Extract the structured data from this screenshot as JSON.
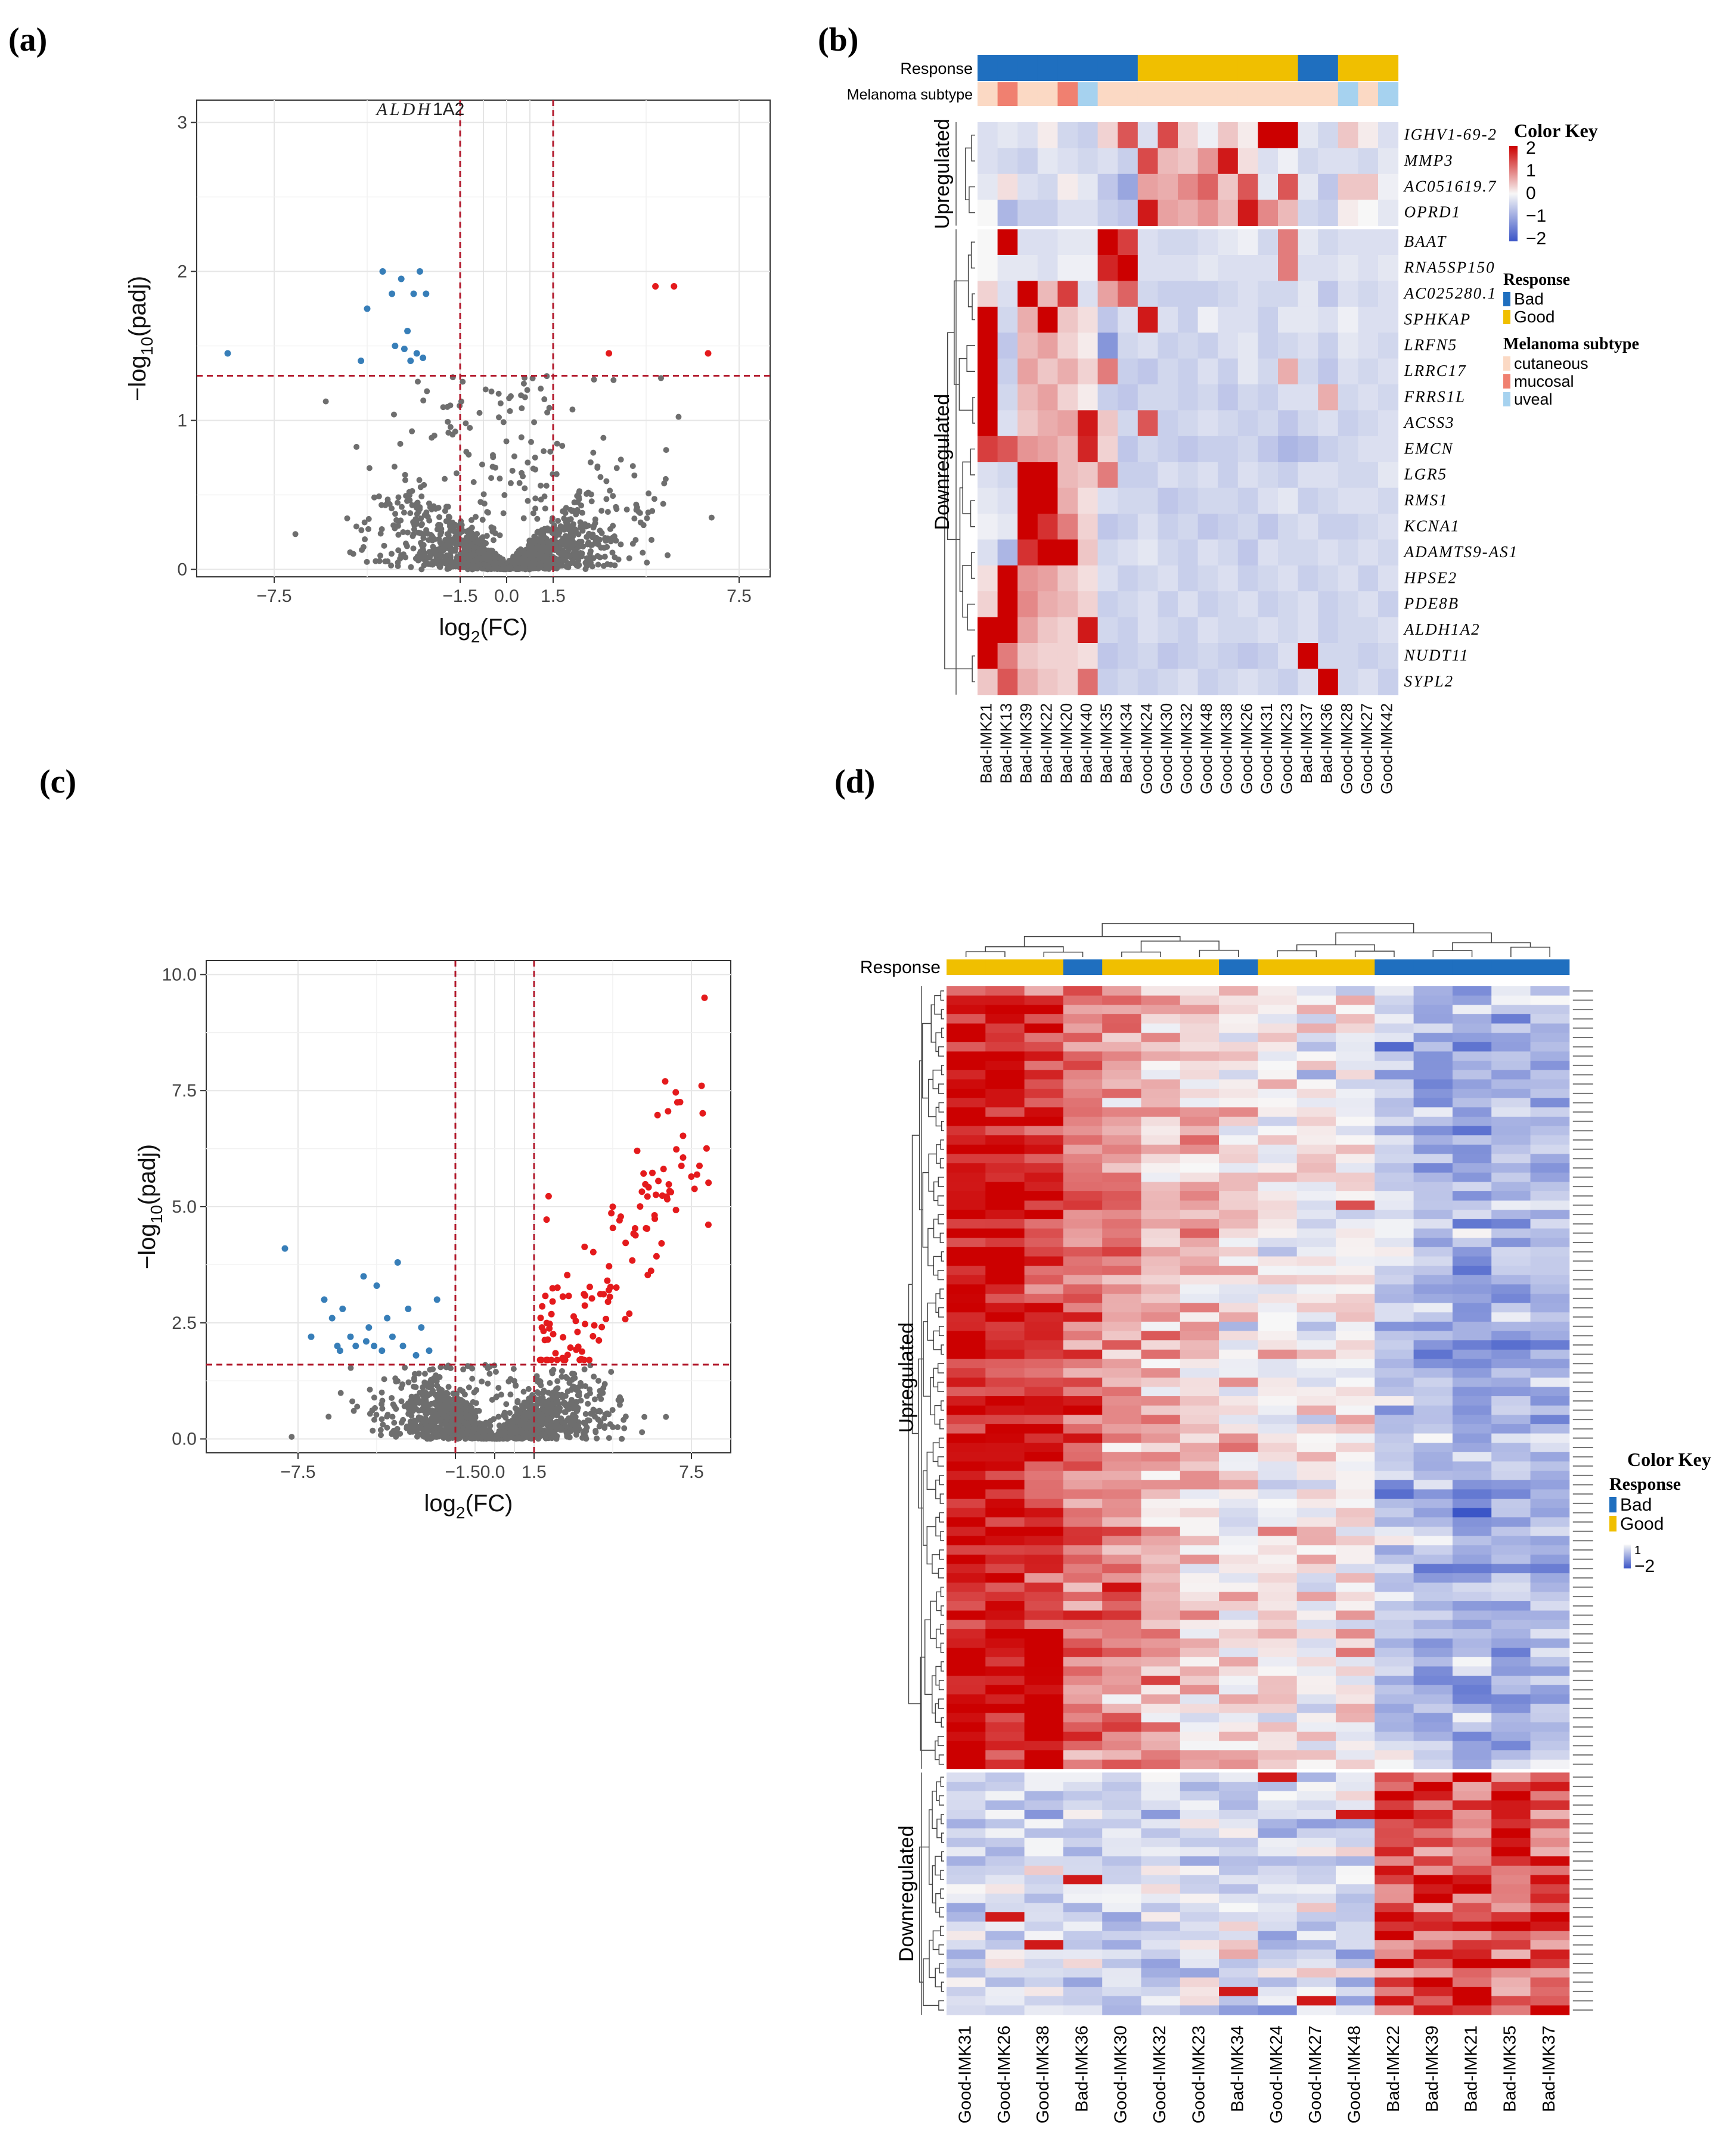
{
  "panels": {
    "a": {
      "label": "(a)"
    },
    "b": {
      "label": "(b)"
    },
    "c": {
      "label": "(c)"
    },
    "d": {
      "label": "(d)"
    }
  },
  "colors": {
    "up": "#e41a1c",
    "down": "#377eb8",
    "ns": "#6e6e6e",
    "threshold": "#b2182b",
    "bad": "#1f6fbf",
    "good": "#f0bf00",
    "cutaneous": "#fbd9c4",
    "mucosal": "#f08070",
    "uveal": "#a6d2ef",
    "heat_low": "#3b55c7",
    "heat_mid": "#f7f7f7",
    "heat_high": "#cc0000"
  },
  "chart_data": [
    {
      "id": "a",
      "type": "scatter",
      "title": "",
      "xlabel_main": "log",
      "xlabel_sub": "2",
      "xlabel_tail": "(FC)",
      "ylabel_main": "−log",
      "ylabel_sub": "10",
      "ylabel_tail": "(padj)",
      "xlim": [
        -10.0,
        8.5
      ],
      "ylim": [
        -0.05,
        3.15
      ],
      "xticks": [
        {
          "v": -7.5,
          "t": "−7.5"
        },
        {
          "v": -1.5,
          "t": "−1.5"
        },
        {
          "v": 0.0,
          "t": "0.0"
        },
        {
          "v": 1.5,
          "t": "1.5"
        },
        {
          "v": 7.5,
          "t": "7.5"
        }
      ],
      "yticks": [
        {
          "v": 0,
          "t": "0"
        },
        {
          "v": 1,
          "t": "1"
        },
        {
          "v": 2,
          "t": "2"
        },
        {
          "v": 3,
          "t": "3"
        }
      ],
      "vlines": [
        -1.5,
        1.5
      ],
      "hline": 1.3,
      "annotations": [
        {
          "x": -4.2,
          "y": 3.05,
          "italic": "ALDH",
          "plain": "1A2"
        }
      ],
      "down_points": [
        [
          -9.0,
          1.45
        ],
        [
          -4.5,
          1.75
        ],
        [
          -4.0,
          2.0
        ],
        [
          -3.7,
          1.85
        ],
        [
          -3.4,
          1.95
        ],
        [
          -3.2,
          1.6
        ],
        [
          -3.0,
          1.85
        ],
        [
          -2.8,
          2.0
        ],
        [
          -2.6,
          1.85
        ],
        [
          -3.6,
          1.5
        ],
        [
          -3.3,
          1.48
        ],
        [
          -2.9,
          1.45
        ],
        [
          -3.1,
          1.4
        ],
        [
          -4.7,
          1.4
        ],
        [
          -2.7,
          1.42
        ]
      ],
      "up_points": [
        [
          4.8,
          1.9
        ],
        [
          5.4,
          1.9
        ],
        [
          6.5,
          1.45
        ],
        [
          3.3,
          1.45
        ]
      ],
      "ns_scatter": {
        "n": 1500,
        "seed": 7,
        "xspan": 8.5,
        "ymax": 1.3
      }
    },
    {
      "id": "b",
      "type": "heatmap",
      "row_group_labels": [
        "Upregulated",
        "Downregulated"
      ],
      "annotation_labels": [
        "Response",
        "Melanoma subtype"
      ],
      "columns": [
        "Bad-IMK21",
        "Bad-IMK13",
        "Bad-IMK39",
        "Bad-IMK22",
        "Bad-IMK20",
        "Bad-IMK40",
        "Bad-IMK35",
        "Bad-IMK34",
        "Good-IMK24",
        "Good-IMK30",
        "Good-IMK32",
        "Good-IMK48",
        "Good-IMK38",
        "Good-IMK26",
        "Good-IMK31",
        "Good-IMK23",
        "Bad-IMK37",
        "Bad-IMK36",
        "Good-IMK28",
        "Good-IMK27",
        "Good-IMK42"
      ],
      "response": [
        "Bad",
        "Bad",
        "Bad",
        "Bad",
        "Bad",
        "Bad",
        "Bad",
        "Bad",
        "Good",
        "Good",
        "Good",
        "Good",
        "Good",
        "Good",
        "Good",
        "Good",
        "Bad",
        "Bad",
        "Good",
        "Good",
        "Good"
      ],
      "subtype": [
        "cutaneous",
        "mucosal",
        "cutaneous",
        "cutaneous",
        "mucosal",
        "uveal",
        "cutaneous",
        "cutaneous",
        "cutaneous",
        "cutaneous",
        "cutaneous",
        "cutaneous",
        "cutaneous",
        "cutaneous",
        "cutaneous",
        "cutaneous",
        "cutaneous",
        "cutaneous",
        "uveal",
        "cutaneous",
        "uveal"
      ],
      "rows": [
        "IGHV1-69-2",
        "MMP3",
        "AC051619.7",
        "OPRD1",
        "BAAT",
        "RNA5SP150",
        "AC025280.1",
        "SPHKAP",
        "LRFN5",
        "LRRC17",
        "FRRS1L",
        "ACSS3",
        "EMCN",
        "LGR5",
        "RMS1",
        "KCNA1",
        "ADAMTS9-AS1",
        "HPSE2",
        "PDE8B",
        "ALDH1A2",
        "NUDT11",
        "SYPL2"
      ],
      "up_count": 4,
      "values": [
        [
          -0.3,
          -0.2,
          -0.3,
          0.1,
          -0.4,
          -0.5,
          0.3,
          1.3,
          -0.3,
          1.4,
          0.3,
          -0.1,
          0.4,
          0.1,
          2.0,
          2.0,
          -0.2,
          -0.4,
          0.4,
          0.1,
          -0.3
        ],
        [
          -0.3,
          -0.4,
          -0.5,
          -0.2,
          -0.3,
          -0.4,
          -0.3,
          -0.5,
          1.4,
          0.5,
          0.4,
          0.8,
          1.8,
          0.2,
          -0.3,
          -0.1,
          -0.4,
          -0.3,
          -0.3,
          -0.4,
          -0.2
        ],
        [
          -0.2,
          0.2,
          -0.3,
          -0.4,
          0.1,
          -0.2,
          -0.6,
          -1.0,
          0.7,
          0.6,
          0.9,
          1.2,
          0.4,
          1.3,
          -0.2,
          1.3,
          -0.2,
          -0.6,
          0.4,
          0.4,
          -0.1
        ],
        [
          0.0,
          -0.8,
          -0.5,
          -0.5,
          -0.3,
          -0.3,
          -0.5,
          -0.6,
          1.8,
          0.7,
          0.6,
          0.8,
          0.5,
          1.8,
          0.9,
          0.5,
          -0.4,
          -0.5,
          0.1,
          0.0,
          -0.2
        ],
        [
          0.0,
          2.0,
          -0.3,
          -0.3,
          -0.2,
          -0.2,
          2.0,
          1.5,
          -0.3,
          -0.4,
          -0.4,
          -0.3,
          -0.2,
          -0.1,
          -0.4,
          1.0,
          -0.2,
          -0.4,
          -0.3,
          -0.3,
          -0.3
        ],
        [
          0.0,
          -0.2,
          -0.2,
          -0.3,
          -0.1,
          -0.1,
          1.7,
          2.0,
          -0.3,
          -0.3,
          -0.3,
          -0.2,
          -0.3,
          -0.3,
          -0.3,
          1.0,
          -0.3,
          -0.3,
          -0.2,
          -0.3,
          -0.2
        ],
        [
          0.3,
          -0.3,
          2.0,
          0.5,
          1.5,
          -0.3,
          0.7,
          1.2,
          -0.4,
          -0.5,
          -0.5,
          -0.5,
          -0.4,
          -0.3,
          -0.4,
          -0.4,
          -0.2,
          -0.6,
          -0.3,
          -0.4,
          -0.3
        ],
        [
          2.0,
          -0.4,
          0.6,
          2.0,
          0.4,
          0.2,
          -0.6,
          -0.3,
          1.8,
          -0.3,
          -0.5,
          -0.1,
          -0.3,
          -0.3,
          -0.5,
          -0.2,
          -0.2,
          -0.3,
          -0.1,
          -0.3,
          -0.3
        ],
        [
          2.0,
          -0.6,
          0.5,
          0.7,
          0.3,
          0.1,
          -1.2,
          -0.4,
          -0.3,
          -0.5,
          -0.4,
          -0.5,
          -0.3,
          -0.2,
          -0.5,
          -0.4,
          -0.3,
          -0.5,
          -0.2,
          -0.3,
          -0.4
        ],
        [
          2.0,
          -0.5,
          0.7,
          0.4,
          0.6,
          0.3,
          1.0,
          -0.5,
          -0.6,
          -0.4,
          -0.5,
          -0.3,
          -0.5,
          -0.2,
          -0.4,
          0.6,
          -0.4,
          -0.6,
          -0.3,
          -0.4,
          -0.3
        ],
        [
          2.0,
          -0.4,
          0.5,
          0.7,
          0.3,
          0.1,
          -0.5,
          -0.6,
          -0.4,
          -0.4,
          -0.5,
          -0.4,
          -0.6,
          -0.4,
          -0.5,
          -0.3,
          -0.3,
          0.6,
          -0.4,
          -0.3,
          -0.4
        ],
        [
          2.0,
          -0.3,
          0.4,
          0.6,
          0.7,
          1.8,
          0.4,
          -0.4,
          1.3,
          -0.5,
          -0.4,
          -0.3,
          -0.4,
          -0.5,
          -0.4,
          -0.6,
          -0.4,
          -0.3,
          -0.5,
          -0.4,
          -0.3
        ],
        [
          1.5,
          1.3,
          0.8,
          0.7,
          0.5,
          1.7,
          0.3,
          -0.6,
          -0.4,
          -0.5,
          -0.6,
          -0.5,
          -0.5,
          -0.4,
          -0.6,
          -0.8,
          -0.7,
          -0.5,
          -0.4,
          -0.3,
          -0.3
        ],
        [
          -0.3,
          -0.4,
          2.0,
          2.0,
          0.5,
          0.4,
          1.0,
          -0.5,
          -0.5,
          -0.3,
          -0.4,
          -0.3,
          -0.5,
          -0.3,
          -0.4,
          -0.5,
          -0.3,
          -0.3,
          -0.4,
          -0.4,
          -0.2
        ],
        [
          -0.2,
          -0.3,
          2.0,
          2.0,
          0.6,
          0.2,
          -0.3,
          -0.4,
          -0.4,
          -0.6,
          -0.5,
          -0.4,
          -0.4,
          -0.5,
          -0.3,
          -0.2,
          -0.5,
          -0.4,
          -0.3,
          -0.3,
          -0.4
        ],
        [
          -0.1,
          -0.2,
          2.0,
          1.6,
          1.0,
          0.3,
          -0.6,
          -0.5,
          -0.3,
          -0.5,
          -0.4,
          -0.6,
          -0.5,
          -0.4,
          -0.6,
          -0.4,
          -0.3,
          -0.5,
          -0.5,
          -0.4,
          -0.3
        ],
        [
          -0.3,
          -0.8,
          1.6,
          2.0,
          2.0,
          0.4,
          -0.4,
          -0.3,
          -0.2,
          -0.4,
          -0.5,
          -0.3,
          -0.4,
          -0.6,
          -0.3,
          -0.4,
          -0.4,
          -0.3,
          -0.4,
          -0.3,
          -0.4
        ],
        [
          0.2,
          2.0,
          0.8,
          0.7,
          0.4,
          0.2,
          -0.3,
          -0.5,
          -0.4,
          -0.3,
          -0.5,
          -0.4,
          -0.3,
          -0.5,
          -0.4,
          -0.3,
          -0.5,
          -0.4,
          -0.3,
          -0.5,
          -0.3
        ],
        [
          0.3,
          2.0,
          0.9,
          0.6,
          0.5,
          0.3,
          -0.5,
          -0.4,
          -0.3,
          -0.5,
          -0.3,
          -0.5,
          -0.4,
          -0.3,
          -0.5,
          -0.4,
          -0.3,
          -0.5,
          -0.4,
          -0.3,
          -0.5
        ],
        [
          2.0,
          2.0,
          0.7,
          0.4,
          0.3,
          1.8,
          -0.4,
          -0.5,
          -0.3,
          -0.4,
          -0.5,
          -0.3,
          -0.4,
          -0.4,
          -0.3,
          -0.4,
          -0.3,
          -0.5,
          -0.4,
          -0.4,
          -0.3
        ],
        [
          2.0,
          1.0,
          0.4,
          0.3,
          0.3,
          0.2,
          -0.6,
          -0.5,
          -0.4,
          -0.6,
          -0.5,
          -0.4,
          -0.5,
          -0.6,
          -0.5,
          -0.3,
          2.0,
          -0.4,
          -0.4,
          -0.5,
          -0.4
        ],
        [
          0.4,
          1.3,
          0.6,
          0.4,
          0.3,
          1.1,
          -0.5,
          -0.4,
          -0.5,
          -0.4,
          -0.3,
          -0.5,
          -0.4,
          -0.3,
          -0.4,
          -0.5,
          -0.3,
          2.0,
          -0.4,
          -0.3,
          -0.5
        ]
      ],
      "colorkey_title": "Color Key",
      "colorkey_ticks": [
        "2",
        "1",
        "0",
        "−1",
        "−2"
      ],
      "legend_response_title": "Response",
      "legend_response_items": [
        "Bad",
        "Good"
      ],
      "legend_subtype_title": "Melanoma subtype",
      "legend_subtype_items": [
        "cutaneous",
        "mucosal",
        "uveal"
      ]
    },
    {
      "id": "c",
      "type": "scatter",
      "title": "",
      "xlabel_main": "log",
      "xlabel_sub": "2",
      "xlabel_tail": "(FC)",
      "ylabel_main": "−log",
      "ylabel_sub": "10",
      "ylabel_tail": "(padj)",
      "xlim": [
        -11.0,
        9.0
      ],
      "ylim": [
        -0.3,
        10.3
      ],
      "xticks": [
        {
          "v": -7.5,
          "t": "−7.5"
        },
        {
          "v": -1.5,
          "t": "−1.5"
        },
        {
          "v": 0.0,
          "t": "0.0"
        },
        {
          "v": 1.5,
          "t": "1.5"
        },
        {
          "v": 7.5,
          "t": "7.5"
        }
      ],
      "xtick_merge": "−1.50.0",
      "yticks": [
        {
          "v": 0,
          "t": "0.0"
        },
        {
          "v": 2.5,
          "t": "2.5"
        },
        {
          "v": 5.0,
          "t": "5.0"
        },
        {
          "v": 7.5,
          "t": "7.5"
        },
        {
          "v": 10.0,
          "t": "10.0"
        }
      ],
      "vlines": [
        -1.5,
        1.5
      ],
      "hline": 1.6,
      "annotations": [],
      "down_points": [
        [
          -8.0,
          4.1
        ],
        [
          -7.0,
          2.2
        ],
        [
          -6.5,
          3.0
        ],
        [
          -6.2,
          2.6
        ],
        [
          -6.0,
          2.0
        ],
        [
          -5.8,
          2.8
        ],
        [
          -5.5,
          2.2
        ],
        [
          -5.3,
          2.0
        ],
        [
          -5.0,
          3.5
        ],
        [
          -4.8,
          2.4
        ],
        [
          -4.6,
          2.0
        ],
        [
          -4.5,
          3.3
        ],
        [
          -4.3,
          1.9
        ],
        [
          -4.1,
          2.6
        ],
        [
          -3.9,
          2.2
        ],
        [
          -3.7,
          3.8
        ],
        [
          -3.5,
          2.0
        ],
        [
          -3.3,
          2.8
        ],
        [
          -3.0,
          1.8
        ],
        [
          -2.8,
          2.4
        ],
        [
          -2.5,
          1.9
        ],
        [
          -2.2,
          3.0
        ],
        [
          -5.9,
          1.9
        ],
        [
          -4.9,
          2.1
        ]
      ],
      "up_points_gen": {
        "n": 120,
        "seed": 11,
        "xmin": 1.6,
        "xmax": 8.2
      },
      "up_points": [
        [
          8.0,
          9.5
        ],
        [
          6.5,
          7.7
        ],
        [
          4.5,
          5.0
        ]
      ],
      "ns_scatter": {
        "n": 1700,
        "seed": 3,
        "xspan": 9.0,
        "ymax": 1.6
      }
    },
    {
      "id": "d",
      "type": "heatmap",
      "row_group_labels": [
        "Upregulated",
        "Downregulated"
      ],
      "annotation_labels": [
        "Response"
      ],
      "columns": [
        "Good-IMK31",
        "Good-IMK26",
        "Good-IMK38",
        "Bad-IMK36",
        "Good-IMK30",
        "Good-IMK32",
        "Good-IMK23",
        "Bad-IMK34",
        "Good-IMK24",
        "Good-IMK27",
        "Good-IMK48",
        "Bad-IMK22",
        "Bad-IMK39",
        "Bad-IMK21",
        "Bad-IMK35",
        "Bad-IMK37"
      ],
      "response": [
        "Good",
        "Good",
        "Good",
        "Bad",
        "Good",
        "Good",
        "Good",
        "Bad",
        "Good",
        "Good",
        "Good",
        "Bad",
        "Bad",
        "Bad",
        "Bad",
        "Bad"
      ],
      "n_rows": 110,
      "up_count": 84,
      "colorkey_title": "Color Key",
      "colorkey_ticks": [
        "1",
        "−2"
      ],
      "legend_response_title": "Response",
      "legend_response_items": [
        "Bad",
        "Good"
      ]
    }
  ]
}
